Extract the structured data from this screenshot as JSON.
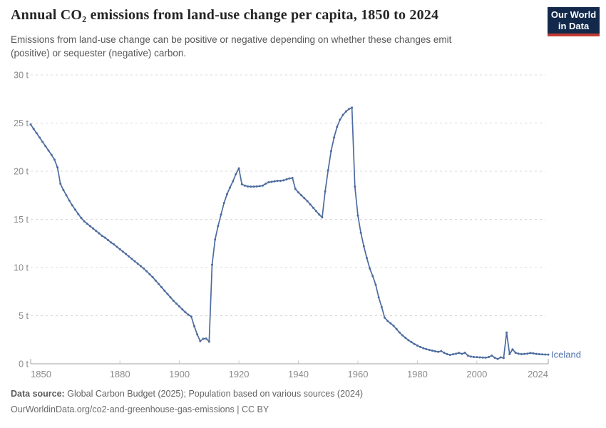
{
  "header": {
    "title": "Annual CO₂ emissions from land-use change per capita, 1850 to 2024",
    "subtitle_lines": [
      "Emissions from land-use change can be positive or negative depending on whether these changes emit",
      "(positive) or sequester (negative) carbon."
    ],
    "logo": {
      "line1": "Our World",
      "line2": "in Data"
    }
  },
  "chart_data": {
    "type": "line",
    "title": "Annual CO₂ emissions from land-use change per capita, 1850 to 2024",
    "entity": "Iceland",
    "unit": "t",
    "xlim": [
      1850,
      2024
    ],
    "ylim": [
      0,
      30
    ],
    "grid": "dashed horizontal",
    "legend_position": "end-of-line label",
    "line_color": "#4C6B9F",
    "label_color": "#4C6FAE",
    "axis_text_color": "#8a8a8a",
    "y_ticks": [
      {
        "value": 0,
        "label": "0 t"
      },
      {
        "value": 5,
        "label": "5 t"
      },
      {
        "value": 10,
        "label": "10 t"
      },
      {
        "value": 15,
        "label": "15 t"
      },
      {
        "value": 20,
        "label": "20 t"
      },
      {
        "value": 25,
        "label": "25 t"
      },
      {
        "value": 30,
        "label": "30 t"
      }
    ],
    "x_ticks": [
      {
        "value": 1850,
        "label": "1850"
      },
      {
        "value": 1880,
        "label": "1880"
      },
      {
        "value": 1900,
        "label": "1900"
      },
      {
        "value": 1920,
        "label": "1920"
      },
      {
        "value": 1940,
        "label": "1940"
      },
      {
        "value": 1960,
        "label": "1960"
      },
      {
        "value": 1980,
        "label": "1980"
      },
      {
        "value": 2000,
        "label": "2000"
      },
      {
        "value": 2024,
        "label": "2024"
      }
    ],
    "series": [
      {
        "name": "Iceland",
        "start_year": 1850,
        "end_year": 2024,
        "step": 1,
        "values": [
          24.85,
          24.4,
          23.95,
          23.5,
          23.05,
          22.6,
          22.15,
          21.7,
          21.2,
          20.4,
          18.7,
          18.05,
          17.5,
          16.95,
          16.45,
          16.0,
          15.55,
          15.15,
          14.8,
          14.55,
          14.3,
          14.05,
          13.8,
          13.55,
          13.3,
          13.1,
          12.85,
          12.6,
          12.4,
          12.15,
          11.9,
          11.65,
          11.4,
          11.15,
          10.9,
          10.65,
          10.4,
          10.15,
          9.9,
          9.6,
          9.3,
          9.0,
          8.65,
          8.3,
          7.95,
          7.6,
          7.25,
          6.9,
          6.55,
          6.25,
          5.95,
          5.65,
          5.35,
          5.1,
          4.9,
          3.9,
          3.05,
          2.35,
          2.6,
          2.62,
          2.3,
          10.3,
          12.9,
          14.3,
          15.5,
          16.7,
          17.6,
          18.3,
          18.95,
          19.7,
          20.3,
          18.65,
          18.5,
          18.42,
          18.4,
          18.4,
          18.42,
          18.45,
          18.5,
          18.7,
          18.85,
          18.9,
          18.95,
          19.0,
          19.0,
          19.05,
          19.15,
          19.25,
          19.3,
          18.15,
          17.8,
          17.5,
          17.2,
          16.9,
          16.55,
          16.2,
          15.85,
          15.5,
          15.2,
          17.9,
          20.1,
          22.1,
          23.5,
          24.6,
          25.35,
          25.85,
          26.2,
          26.45,
          26.6,
          18.4,
          15.4,
          13.6,
          12.2,
          11.0,
          9.9,
          9.1,
          8.2,
          6.9,
          5.9,
          4.8,
          4.45,
          4.2,
          3.95,
          3.6,
          3.25,
          2.95,
          2.7,
          2.45,
          2.25,
          2.05,
          1.9,
          1.75,
          1.62,
          1.52,
          1.44,
          1.37,
          1.3,
          1.24,
          1.32,
          1.15,
          1.0,
          0.92,
          0.99,
          1.05,
          1.13,
          1.03,
          1.15,
          0.85,
          0.75,
          0.7,
          0.69,
          0.67,
          0.65,
          0.64,
          0.7,
          0.85,
          0.64,
          0.5,
          0.67,
          0.6,
          3.25,
          1.0,
          1.5,
          1.15,
          1.05,
          1.0,
          1.03,
          1.06,
          1.12,
          1.08,
          1.03,
          1.0,
          0.98,
          0.96,
          0.95
        ]
      }
    ]
  },
  "footer": {
    "source_label": "Data source:",
    "source_text": "Global Carbon Budget (2025); Population based on various sources (2024)",
    "url": "OurWorldinData.org/co2-and-greenhouse-gas-emissions",
    "license": " | CC BY"
  }
}
